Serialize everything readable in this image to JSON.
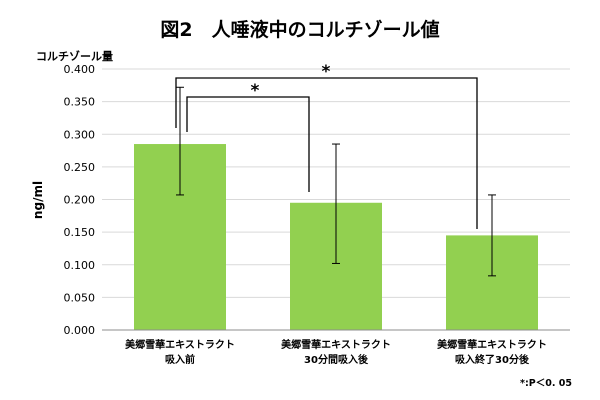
{
  "chart_data": {
    "type": "bar",
    "title": "図2　人唾液中のコルチゾール値",
    "unit_label": "コルチゾール量",
    "ylabel": "ng/ml",
    "ylim": [
      0,
      0.4
    ],
    "yticks": [
      "0.000",
      "0.050",
      "0.100",
      "0.150",
      "0.200",
      "0.250",
      "0.300",
      "0.350",
      "0.400"
    ],
    "categories": [
      [
        "美郷雪華エキストラクト",
        "吸入前"
      ],
      [
        "美郷雪華エキストラクト",
        "30分間吸入後"
      ],
      [
        "美郷雪華エキストラクト",
        "吸入終了30分後"
      ]
    ],
    "values": [
      0.285,
      0.195,
      0.145
    ],
    "error_high": [
      0.372,
      0.285,
      0.207
    ],
    "error_low": [
      0.207,
      0.102,
      0.083
    ],
    "bar_color": "#92d050",
    "grid": true,
    "significance": [
      {
        "from": 0,
        "to": 1,
        "label": "*"
      },
      {
        "from": 0,
        "to": 2,
        "label": "*"
      }
    ],
    "footnote": "*:P＜0. 05"
  }
}
